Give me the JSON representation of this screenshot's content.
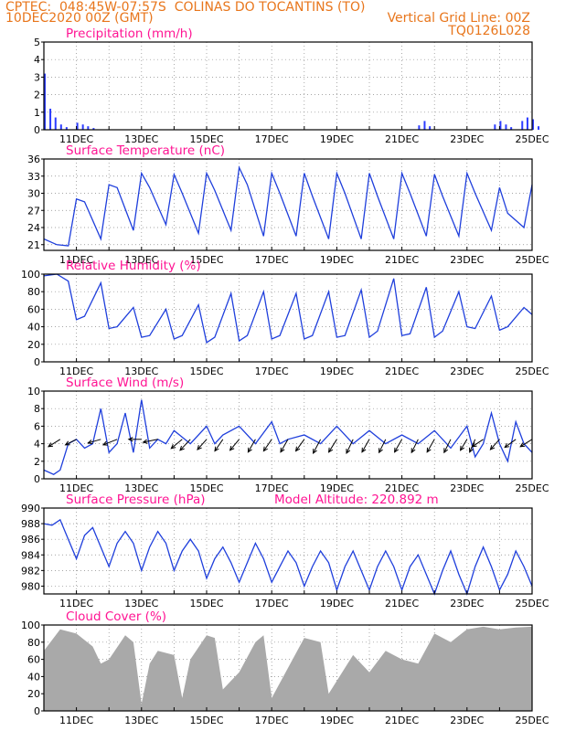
{
  "header": {
    "line1": "CPTEC:  048:45W-07:57S  COLINAS DO TOCANTINS (TO)",
    "line2_left": "10DEC2020 00Z (GMT)",
    "line2_right": "Vertical Grid Line: 00Z",
    "line3_right": "TQ0126L028"
  },
  "colors": {
    "header": "#e8761c",
    "title": "#ff1493",
    "line": "#1f3fdc",
    "bar": "#2c3cff",
    "cloud": "#a9a9a9",
    "grid": "#888888"
  },
  "chart_data": [
    {
      "type": "bar",
      "title": "Precipitation (mm/h)",
      "ylim": [
        0,
        5
      ],
      "yticks": [
        0,
        1,
        2,
        3,
        4,
        5
      ],
      "xticklabels": [
        "11DEC",
        "13DEC",
        "15DEC",
        "17DEC",
        "19DEC",
        "21DEC",
        "23DEC",
        "25DEC"
      ],
      "x": [
        0,
        0.17,
        0.33,
        0.5,
        0.67,
        1.0,
        1.17,
        1.33,
        1.5,
        11.5,
        11.67,
        11.83,
        13.83,
        14.0,
        14.17,
        14.33,
        14.67,
        14.83,
        15.0,
        15.17
      ],
      "values": [
        3.2,
        1.2,
        0.7,
        0.3,
        0.15,
        0.4,
        0.3,
        0.2,
        0.1,
        0.25,
        0.5,
        0.2,
        0.3,
        0.5,
        0.3,
        0.15,
        0.5,
        0.7,
        0.6,
        0.2
      ]
    },
    {
      "type": "line",
      "title": "Surface Temperature (nC)",
      "ylim": [
        20,
        36
      ],
      "yticks": [
        21,
        24,
        27,
        30,
        33,
        36
      ],
      "xticklabels": [
        "11DEC",
        "13DEC",
        "15DEC",
        "17DEC",
        "19DEC",
        "21DEC",
        "23DEC",
        "25DEC"
      ],
      "x": [
        0,
        0.4,
        0.75,
        1.0,
        1.25,
        1.75,
        2.0,
        2.25,
        2.75,
        3.0,
        3.25,
        3.75,
        4.0,
        4.25,
        4.75,
        5.0,
        5.25,
        5.75,
        6.0,
        6.25,
        6.75,
        7.0,
        7.25,
        7.75,
        8.0,
        8.25,
        8.75,
        9.0,
        9.25,
        9.75,
        10.0,
        10.25,
        10.75,
        11.0,
        11.25,
        11.75,
        12.0,
        12.25,
        12.75,
        13.0,
        13.25,
        13.75,
        14.0,
        14.25,
        14.75,
        15.0
      ],
      "values": [
        22.0,
        21.0,
        20.8,
        29.0,
        28.5,
        22.0,
        31.5,
        31.0,
        23.5,
        33.5,
        31.0,
        24.5,
        33.3,
        30.0,
        23.0,
        33.5,
        30.5,
        23.5,
        34.5,
        31.5,
        22.5,
        33.5,
        30.0,
        22.5,
        33.5,
        29.5,
        22.0,
        33.5,
        30.0,
        22.0,
        33.5,
        29.5,
        22.0,
        33.5,
        30.0,
        22.5,
        33.3,
        29.5,
        22.5,
        33.5,
        30.0,
        23.5,
        31.0,
        26.5,
        24.0,
        31.5
      ]
    },
    {
      "type": "line",
      "title": "Relative Humidity (%)",
      "ylim": [
        0,
        100
      ],
      "yticks": [
        0,
        20,
        40,
        60,
        80,
        100
      ],
      "xticklabels": [
        "11DEC",
        "13DEC",
        "15DEC",
        "17DEC",
        "19DEC",
        "21DEC",
        "23DEC",
        "25DEC"
      ],
      "x": [
        0,
        0.4,
        0.75,
        1.0,
        1.25,
        1.75,
        2.0,
        2.25,
        2.75,
        3.0,
        3.25,
        3.75,
        4.0,
        4.25,
        4.75,
        5.0,
        5.25,
        5.75,
        6.0,
        6.25,
        6.75,
        7.0,
        7.25,
        7.75,
        8.0,
        8.25,
        8.75,
        9.0,
        9.25,
        9.75,
        10.0,
        10.25,
        10.75,
        11.0,
        11.25,
        11.75,
        12.0,
        12.25,
        12.75,
        13.0,
        13.25,
        13.75,
        14.0,
        14.25,
        14.75,
        15.0
      ],
      "values": [
        98,
        100,
        92,
        48,
        52,
        90,
        38,
        40,
        62,
        28,
        30,
        60,
        26,
        30,
        65,
        22,
        28,
        78,
        24,
        30,
        80,
        26,
        30,
        78,
        26,
        30,
        80,
        28,
        30,
        82,
        28,
        35,
        95,
        30,
        32,
        85,
        28,
        35,
        80,
        40,
        38,
        75,
        36,
        40,
        62,
        54
      ]
    },
    {
      "type": "line",
      "title": "Surface Wind (m/s)",
      "ylim": [
        0,
        10
      ],
      "yticks": [
        0,
        2,
        4,
        6,
        8,
        10
      ],
      "xticklabels": [
        "11DEC",
        "13DEC",
        "15DEC",
        "17DEC",
        "19DEC",
        "21DEC",
        "23DEC",
        "25DEC"
      ],
      "x": [
        0,
        0.3,
        0.5,
        0.75,
        1.0,
        1.25,
        1.5,
        1.75,
        2.0,
        2.25,
        2.5,
        2.75,
        3.0,
        3.25,
        3.5,
        3.75,
        4.0,
        4.5,
        5.0,
        5.25,
        5.5,
        6.0,
        6.5,
        7.0,
        7.25,
        7.5,
        8.0,
        8.5,
        9.0,
        9.5,
        10.0,
        10.5,
        11.0,
        11.5,
        12.0,
        12.5,
        13.0,
        13.25,
        13.5,
        13.75,
        14.0,
        14.25,
        14.5,
        14.75,
        15.0
      ],
      "values": [
        1.0,
        0.5,
        1.0,
        4.0,
        4.5,
        3.5,
        4.0,
        8.0,
        3.0,
        4.0,
        7.5,
        3.0,
        9.0,
        3.5,
        4.5,
        4.0,
        5.5,
        4.0,
        6.0,
        4.0,
        5.0,
        6.0,
        4.0,
        6.5,
        4.0,
        4.5,
        5.0,
        4.0,
        6.0,
        4.0,
        5.5,
        4.0,
        5.0,
        4.0,
        5.5,
        3.5,
        6.0,
        2.5,
        4.0,
        7.5,
        4.0,
        2.0,
        6.5,
        4.0,
        3.0
      ],
      "vectors": {
        "x": [
          0.5,
          1.0,
          1.75,
          2.25,
          3.0,
          3.5,
          4.25,
          4.5,
          5.0,
          5.5,
          6.0,
          6.5,
          7.0,
          7.5,
          8.0,
          8.5,
          9.0,
          9.5,
          10.0,
          10.5,
          11.0,
          11.5,
          12.0,
          12.5,
          13.0,
          13.25,
          13.5,
          14.0,
          14.5,
          15.0
        ],
        "u": [
          -3.2,
          -3.0,
          -3.5,
          -3.8,
          -3.5,
          -4.0,
          -3.0,
          -2.8,
          -2.5,
          -2.2,
          -2.5,
          -2.0,
          -2.2,
          -2.0,
          -2.3,
          -2.0,
          -2.2,
          -1.8,
          -2.0,
          -1.8,
          -2.0,
          -1.8,
          -2.0,
          -1.8,
          -1.8,
          -1.5,
          -3.0,
          -2.5,
          -3.0,
          -3.2
        ],
        "v": [
          -2.0,
          -1.5,
          -1.0,
          -1.5,
          0.0,
          -0.8,
          -2.5,
          -3.0,
          -2.8,
          -3.2,
          -3.0,
          -3.5,
          -3.2,
          -3.5,
          -3.2,
          -3.8,
          -3.5,
          -3.8,
          -3.5,
          -3.6,
          -3.5,
          -3.6,
          -3.5,
          -3.6,
          -3.0,
          -3.5,
          -2.0,
          -2.8,
          -2.2,
          -2.0
        ]
      }
    },
    {
      "type": "line",
      "title": "Surface Pressure (hPa)",
      "subtitle": "Model Altitude: 220.892 m",
      "ylim": [
        979,
        990
      ],
      "yticks": [
        980,
        982,
        984,
        986,
        988,
        990
      ],
      "xticklabels": [
        "11DEC",
        "13DEC",
        "15DEC",
        "17DEC",
        "19DEC",
        "21DEC",
        "23DEC",
        "25DEC"
      ],
      "x": [
        0,
        0.25,
        0.5,
        0.75,
        1.0,
        1.25,
        1.5,
        1.75,
        2.0,
        2.25,
        2.5,
        2.75,
        3.0,
        3.25,
        3.5,
        3.75,
        4.0,
        4.25,
        4.5,
        4.75,
        5.0,
        5.25,
        5.5,
        5.75,
        6.0,
        6.25,
        6.5,
        6.75,
        7.0,
        7.25,
        7.5,
        7.75,
        8.0,
        8.25,
        8.5,
        8.75,
        9.0,
        9.25,
        9.5,
        9.75,
        10.0,
        10.25,
        10.5,
        10.75,
        11.0,
        11.25,
        11.5,
        11.75,
        12.0,
        12.25,
        12.5,
        12.75,
        13.0,
        13.25,
        13.5,
        13.75,
        14.0,
        14.25,
        14.5,
        14.75,
        15.0
      ],
      "values": [
        988.0,
        987.8,
        988.5,
        986.0,
        983.5,
        986.5,
        987.5,
        985.0,
        982.5,
        985.5,
        987.0,
        985.5,
        982.0,
        985.0,
        987.0,
        985.5,
        982.0,
        984.5,
        986.0,
        984.5,
        981.0,
        983.5,
        985.0,
        983.0,
        980.5,
        983.0,
        985.5,
        983.5,
        980.5,
        982.5,
        984.5,
        983.0,
        980.0,
        982.5,
        984.5,
        983.0,
        979.5,
        982.5,
        984.5,
        982.0,
        979.5,
        982.5,
        984.5,
        982.5,
        979.5,
        982.5,
        984.0,
        981.5,
        979.0,
        982.0,
        984.5,
        981.5,
        979.0,
        982.5,
        985.0,
        982.5,
        979.5,
        981.5,
        984.5,
        982.5,
        980.0
      ],
      "ylabel": ""
    },
    {
      "type": "area",
      "title": "Cloud Cover (%)",
      "ylim": [
        0,
        100
      ],
      "yticks": [
        0,
        20,
        40,
        60,
        80,
        100
      ],
      "xticklabels": [
        "11DEC",
        "13DEC",
        "15DEC",
        "17DEC",
        "19DEC",
        "21DEC",
        "23DEC",
        "25DEC"
      ],
      "x": [
        0,
        0.5,
        1.0,
        1.5,
        1.75,
        2.0,
        2.5,
        2.75,
        3.0,
        3.25,
        3.5,
        4.0,
        4.25,
        4.5,
        5.0,
        5.25,
        5.5,
        6.0,
        6.5,
        6.75,
        7.0,
        7.5,
        8.0,
        8.5,
        8.75,
        9.0,
        9.5,
        10.0,
        10.5,
        11.0,
        11.5,
        12.0,
        12.5,
        13.0,
        13.5,
        14.0,
        14.5,
        15.0
      ],
      "values": [
        70,
        95,
        90,
        75,
        55,
        60,
        88,
        80,
        8,
        55,
        70,
        65,
        15,
        60,
        88,
        85,
        25,
        45,
        80,
        88,
        15,
        50,
        85,
        80,
        20,
        35,
        65,
        45,
        70,
        60,
        55,
        90,
        80,
        95,
        98,
        95,
        97,
        98
      ]
    }
  ]
}
